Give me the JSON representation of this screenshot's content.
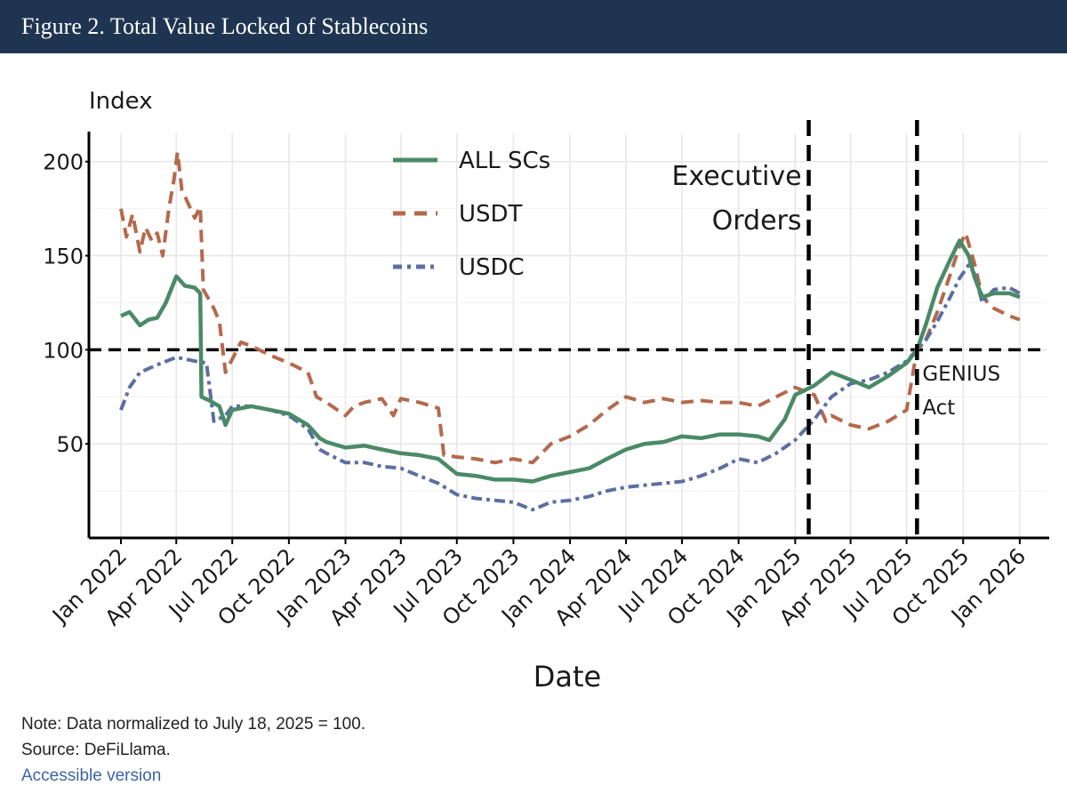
{
  "header": {
    "title": "Figure 2. Total Value Locked of Stablecoins"
  },
  "footer": {
    "note": "Note: Data normalized to July 18, 2025 = 100.",
    "source": "Source: DeFiLlama.",
    "link": "Accessible version"
  },
  "chart_data": {
    "type": "line",
    "title": "Total Value Locked of Stablecoins",
    "ylabel": "Index",
    "xlabel": "Date",
    "ylim": [
      0,
      215
    ],
    "yticks": [
      50,
      100,
      150,
      200
    ],
    "xlim": [
      "2021-11-10",
      "2026-02-15"
    ],
    "xticks": [
      {
        "label": "Jan 2022",
        "date": "2022-01-01"
      },
      {
        "label": "Apr 2022",
        "date": "2022-04-01"
      },
      {
        "label": "Jul 2022",
        "date": "2022-07-01"
      },
      {
        "label": "Oct 2022",
        "date": "2022-10-01"
      },
      {
        "label": "Jan 2023",
        "date": "2023-01-01"
      },
      {
        "label": "Apr 2023",
        "date": "2023-04-01"
      },
      {
        "label": "Jul 2023",
        "date": "2023-07-01"
      },
      {
        "label": "Oct 2023",
        "date": "2023-10-01"
      },
      {
        "label": "Jan 2024",
        "date": "2024-01-01"
      },
      {
        "label": "Apr 2024",
        "date": "2024-04-01"
      },
      {
        "label": "Jul 2024",
        "date": "2024-07-01"
      },
      {
        "label": "Oct 2024",
        "date": "2024-10-01"
      },
      {
        "label": "Jan 2025",
        "date": "2025-01-01"
      },
      {
        "label": "Apr 2025",
        "date": "2025-04-01"
      },
      {
        "label": "Jul 2025",
        "date": "2025-07-01"
      },
      {
        "label": "Oct 2025",
        "date": "2025-10-01"
      },
      {
        "label": "Jan 2026",
        "date": "2026-01-01"
      }
    ],
    "reference_line": {
      "y": 100,
      "style": "dashed"
    },
    "annotations": [
      {
        "label_lines": [
          "Executive",
          "Orders"
        ],
        "date": "2025-01-23",
        "style": "dashed-vertical"
      },
      {
        "label_lines": [
          "GENIUS",
          "Act"
        ],
        "date": "2025-07-18",
        "style": "dashed-vertical"
      }
    ],
    "legend": {
      "position": "top-center"
    },
    "series": [
      {
        "name": "ALL SCs",
        "color": "#4a8a67",
        "style": "solid",
        "points": [
          [
            "2022-01-01",
            118
          ],
          [
            "2022-01-15",
            120
          ],
          [
            "2022-02-01",
            113
          ],
          [
            "2022-02-15",
            116
          ],
          [
            "2022-03-01",
            117
          ],
          [
            "2022-03-15",
            125
          ],
          [
            "2022-04-01",
            139
          ],
          [
            "2022-04-15",
            134
          ],
          [
            "2022-05-01",
            133
          ],
          [
            "2022-05-10",
            130
          ],
          [
            "2022-05-12",
            75
          ],
          [
            "2022-05-25",
            73
          ],
          [
            "2022-06-10",
            70
          ],
          [
            "2022-06-20",
            60
          ],
          [
            "2022-07-01",
            68
          ],
          [
            "2022-08-01",
            70
          ],
          [
            "2022-09-01",
            68
          ],
          [
            "2022-10-01",
            66
          ],
          [
            "2022-11-01",
            60
          ],
          [
            "2022-11-20",
            53
          ],
          [
            "2022-12-01",
            51
          ],
          [
            "2023-01-01",
            48
          ],
          [
            "2023-02-01",
            49
          ],
          [
            "2023-03-01",
            47
          ],
          [
            "2023-04-01",
            45
          ],
          [
            "2023-05-01",
            44
          ],
          [
            "2023-06-01",
            42
          ],
          [
            "2023-07-01",
            34
          ],
          [
            "2023-08-01",
            33
          ],
          [
            "2023-09-01",
            31
          ],
          [
            "2023-10-01",
            31
          ],
          [
            "2023-11-01",
            30
          ],
          [
            "2023-12-01",
            33
          ],
          [
            "2024-01-01",
            35
          ],
          [
            "2024-02-01",
            37
          ],
          [
            "2024-03-01",
            42
          ],
          [
            "2024-04-01",
            47
          ],
          [
            "2024-05-01",
            50
          ],
          [
            "2024-06-01",
            51
          ],
          [
            "2024-07-01",
            54
          ],
          [
            "2024-08-01",
            53
          ],
          [
            "2024-09-01",
            55
          ],
          [
            "2024-10-01",
            55
          ],
          [
            "2024-11-01",
            54
          ],
          [
            "2024-11-20",
            52
          ],
          [
            "2024-12-15",
            63
          ],
          [
            "2025-01-01",
            76
          ],
          [
            "2025-02-01",
            81
          ],
          [
            "2025-03-01",
            88
          ],
          [
            "2025-04-01",
            84
          ],
          [
            "2025-05-01",
            80
          ],
          [
            "2025-06-01",
            86
          ],
          [
            "2025-07-01",
            93
          ],
          [
            "2025-07-18",
            100
          ],
          [
            "2025-08-01",
            113
          ],
          [
            "2025-08-20",
            133
          ],
          [
            "2025-09-10",
            148
          ],
          [
            "2025-09-25",
            158
          ],
          [
            "2025-10-10",
            150
          ],
          [
            "2025-10-20",
            138
          ],
          [
            "2025-11-01",
            128
          ],
          [
            "2025-11-20",
            130
          ],
          [
            "2025-12-15",
            130
          ],
          [
            "2026-01-01",
            128
          ]
        ]
      },
      {
        "name": "USDT",
        "color": "#b4694d",
        "style": "dashed",
        "points": [
          [
            "2022-01-01",
            175
          ],
          [
            "2022-01-10",
            160
          ],
          [
            "2022-01-20",
            172
          ],
          [
            "2022-02-01",
            152
          ],
          [
            "2022-02-10",
            165
          ],
          [
            "2022-02-20",
            158
          ],
          [
            "2022-03-01",
            162
          ],
          [
            "2022-03-10",
            150
          ],
          [
            "2022-03-20",
            175
          ],
          [
            "2022-03-28",
            190
          ],
          [
            "2022-04-03",
            205
          ],
          [
            "2022-04-10",
            185
          ],
          [
            "2022-04-20",
            178
          ],
          [
            "2022-05-01",
            170
          ],
          [
            "2022-05-10",
            176
          ],
          [
            "2022-05-15",
            132
          ],
          [
            "2022-06-01",
            122
          ],
          [
            "2022-06-10",
            115
          ],
          [
            "2022-06-20",
            88
          ],
          [
            "2022-07-01",
            95
          ],
          [
            "2022-07-15",
            104
          ],
          [
            "2022-08-01",
            102
          ],
          [
            "2022-09-01",
            97
          ],
          [
            "2022-10-01",
            93
          ],
          [
            "2022-11-01",
            88
          ],
          [
            "2022-11-15",
            75
          ],
          [
            "2022-12-01",
            72
          ],
          [
            "2023-01-01",
            65
          ],
          [
            "2023-01-15",
            70
          ],
          [
            "2023-02-01",
            72
          ],
          [
            "2023-03-01",
            74
          ],
          [
            "2023-03-20",
            65
          ],
          [
            "2023-04-01",
            74
          ],
          [
            "2023-05-01",
            72
          ],
          [
            "2023-06-01",
            69
          ],
          [
            "2023-06-10",
            44
          ],
          [
            "2023-07-01",
            43
          ],
          [
            "2023-08-01",
            42
          ],
          [
            "2023-09-01",
            40
          ],
          [
            "2023-10-01",
            42
          ],
          [
            "2023-11-01",
            40
          ],
          [
            "2023-12-01",
            50
          ],
          [
            "2024-01-01",
            54
          ],
          [
            "2024-02-01",
            60
          ],
          [
            "2024-03-01",
            68
          ],
          [
            "2024-04-01",
            75
          ],
          [
            "2024-05-01",
            72
          ],
          [
            "2024-06-01",
            74
          ],
          [
            "2024-07-01",
            72
          ],
          [
            "2024-08-01",
            73
          ],
          [
            "2024-09-01",
            72
          ],
          [
            "2024-10-01",
            72
          ],
          [
            "2024-11-01",
            70
          ],
          [
            "2024-12-01",
            75
          ],
          [
            "2025-01-01",
            80
          ],
          [
            "2025-02-01",
            76
          ],
          [
            "2025-02-20",
            62
          ],
          [
            "2025-03-01",
            65
          ],
          [
            "2025-04-01",
            60
          ],
          [
            "2025-05-01",
            58
          ],
          [
            "2025-06-01",
            62
          ],
          [
            "2025-07-01",
            68
          ],
          [
            "2025-07-18",
            100
          ],
          [
            "2025-08-01",
            105
          ],
          [
            "2025-08-20",
            120
          ],
          [
            "2025-09-10",
            140
          ],
          [
            "2025-09-25",
            155
          ],
          [
            "2025-10-05",
            162
          ],
          [
            "2025-10-20",
            145
          ],
          [
            "2025-11-01",
            128
          ],
          [
            "2025-11-20",
            122
          ],
          [
            "2025-12-15",
            118
          ],
          [
            "2026-01-01",
            116
          ]
        ]
      },
      {
        "name": "USDC",
        "color": "#5b6fa0",
        "style": "dashdot",
        "points": [
          [
            "2022-01-01",
            68
          ],
          [
            "2022-01-15",
            80
          ],
          [
            "2022-02-01",
            88
          ],
          [
            "2022-03-01",
            92
          ],
          [
            "2022-04-01",
            96
          ],
          [
            "2022-05-01",
            94
          ],
          [
            "2022-05-20",
            93
          ],
          [
            "2022-06-01",
            62
          ],
          [
            "2022-06-20",
            65
          ],
          [
            "2022-07-01",
            70
          ],
          [
            "2022-08-01",
            70
          ],
          [
            "2022-09-01",
            68
          ],
          [
            "2022-10-01",
            65
          ],
          [
            "2022-11-01",
            58
          ],
          [
            "2022-11-20",
            47
          ],
          [
            "2022-12-01",
            45
          ],
          [
            "2023-01-01",
            40
          ],
          [
            "2023-02-01",
            40
          ],
          [
            "2023-03-01",
            38
          ],
          [
            "2023-04-01",
            37
          ],
          [
            "2023-05-01",
            33
          ],
          [
            "2023-06-01",
            29
          ],
          [
            "2023-07-01",
            23
          ],
          [
            "2023-08-01",
            21
          ],
          [
            "2023-09-01",
            20
          ],
          [
            "2023-10-01",
            19
          ],
          [
            "2023-11-01",
            15
          ],
          [
            "2023-12-01",
            19
          ],
          [
            "2024-01-01",
            20
          ],
          [
            "2024-02-01",
            22
          ],
          [
            "2024-03-01",
            25
          ],
          [
            "2024-04-01",
            27
          ],
          [
            "2024-05-01",
            28
          ],
          [
            "2024-06-01",
            29
          ],
          [
            "2024-07-01",
            30
          ],
          [
            "2024-08-01",
            33
          ],
          [
            "2024-09-01",
            37
          ],
          [
            "2024-10-01",
            42
          ],
          [
            "2024-11-01",
            40
          ],
          [
            "2024-12-01",
            45
          ],
          [
            "2025-01-01",
            52
          ],
          [
            "2025-02-01",
            63
          ],
          [
            "2025-03-01",
            75
          ],
          [
            "2025-04-01",
            82
          ],
          [
            "2025-05-01",
            84
          ],
          [
            "2025-06-01",
            88
          ],
          [
            "2025-07-01",
            94
          ],
          [
            "2025-07-18",
            100
          ],
          [
            "2025-08-01",
            105
          ],
          [
            "2025-08-20",
            115
          ],
          [
            "2025-09-10",
            128
          ],
          [
            "2025-09-25",
            138
          ],
          [
            "2025-10-10",
            145
          ],
          [
            "2025-10-20",
            140
          ],
          [
            "2025-11-01",
            125
          ],
          [
            "2025-11-20",
            132
          ],
          [
            "2025-12-15",
            133
          ],
          [
            "2026-01-01",
            130
          ]
        ]
      }
    ]
  }
}
